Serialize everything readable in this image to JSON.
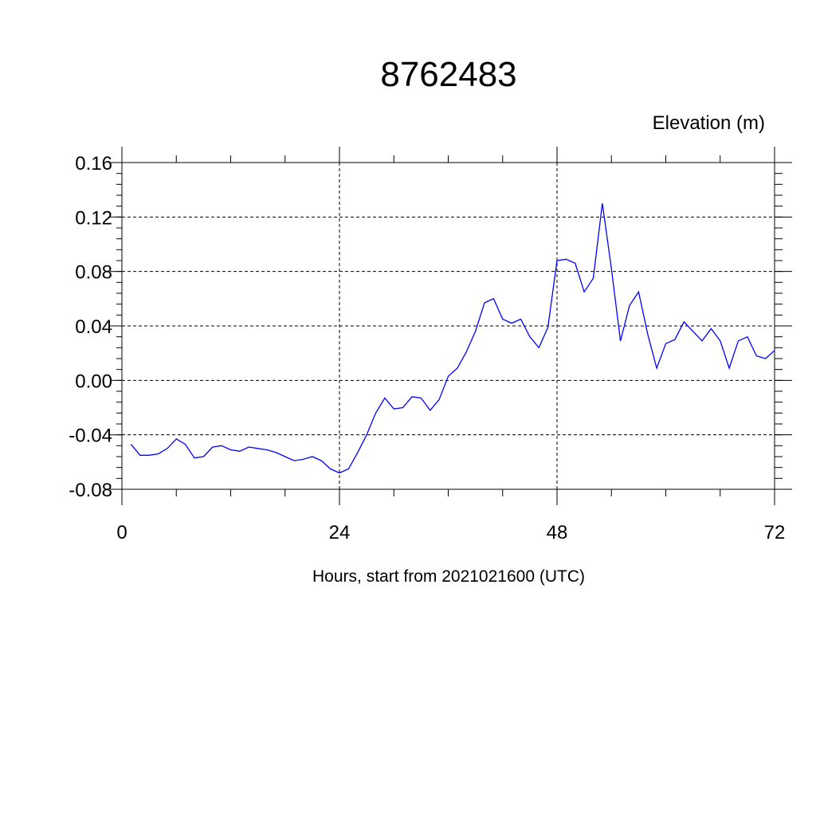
{
  "chart_data": {
    "type": "line",
    "title": "8762483",
    "corner_label": "Elevation (m)",
    "xlabel": "Hours, start from 2021021600 (UTC)",
    "ylabel": "",
    "xlim": [
      0,
      72
    ],
    "ylim": [
      -0.08,
      0.16
    ],
    "x_ticks": [
      0,
      24,
      48,
      72
    ],
    "x_tick_labels": [
      "0",
      "24",
      "48",
      "72"
    ],
    "y_ticks": [
      -0.08,
      -0.04,
      0.0,
      0.04,
      0.08,
      0.12,
      0.16
    ],
    "y_tick_labels": [
      "-0.08",
      "-0.04",
      "0.00",
      "0.04",
      "0.08",
      "0.12",
      "0.16"
    ],
    "grid": true,
    "series_color": "#0000ff",
    "series": [
      {
        "x": [
          1,
          2,
          3,
          4,
          5,
          6,
          7,
          8,
          9,
          10,
          11,
          12,
          13,
          14,
          15,
          16,
          17,
          18,
          19,
          20,
          21,
          22,
          23,
          24,
          25,
          26,
          27,
          28,
          29,
          30,
          31,
          32,
          33,
          34,
          35,
          36,
          37,
          38,
          39,
          40,
          41,
          42,
          43,
          44,
          45,
          46,
          47,
          48,
          49,
          50,
          51,
          52,
          53,
          54,
          55,
          56,
          57,
          58,
          59,
          60,
          61,
          62,
          63,
          64,
          65,
          66,
          67,
          68,
          69,
          70,
          71,
          72
        ],
        "values": [
          -0.047,
          -0.055,
          -0.055,
          -0.054,
          -0.05,
          -0.043,
          -0.047,
          -0.057,
          -0.056,
          -0.049,
          -0.048,
          -0.051,
          -0.052,
          -0.049,
          -0.05,
          -0.051,
          -0.053,
          -0.056,
          -0.059,
          -0.058,
          -0.056,
          -0.059,
          -0.065,
          -0.068,
          -0.065,
          -0.053,
          -0.04,
          -0.024,
          -0.013,
          -0.021,
          -0.02,
          -0.012,
          -0.013,
          -0.022,
          -0.014,
          0.003,
          0.009,
          0.021,
          0.036,
          0.057,
          0.06,
          0.045,
          0.042,
          0.045,
          0.032,
          0.024,
          0.039,
          0.088,
          0.089,
          0.086,
          0.065,
          0.075,
          0.13,
          0.082,
          0.029,
          0.055,
          0.065,
          0.034,
          0.009,
          0.027,
          0.03,
          0.043,
          0.036,
          0.029,
          0.038,
          0.029,
          0.009,
          0.029,
          0.032,
          0.018,
          0.016,
          0.022
        ]
      }
    ]
  }
}
